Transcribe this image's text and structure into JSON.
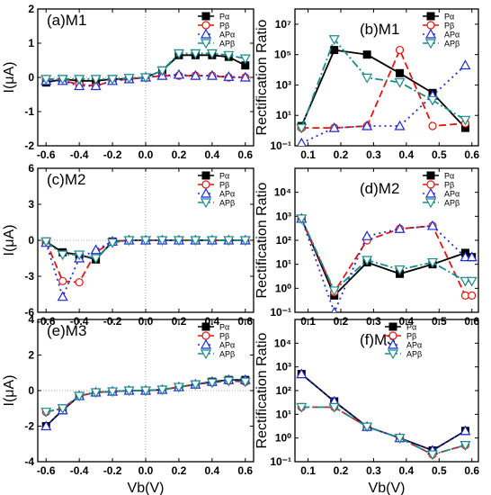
{
  "styles": {
    "Pα": {
      "color": "#000000",
      "dash": "",
      "marker": "square-filled"
    },
    "Pβ": {
      "color": "#e8140c",
      "dash": "8,4",
      "marker": "circle-open"
    },
    "APα": {
      "color": "#1f2ad8",
      "dash": "2,4",
      "marker": "triangle-open"
    },
    "APβ": {
      "color": "#1a8a8a",
      "dash": "9,3,2,3",
      "marker": "triangle-down-open"
    }
  },
  "chart_data": [
    {
      "type": "line",
      "title": "(a)M1",
      "ylabel": "I(μA)",
      "xlabel": "",
      "xlim": [
        -0.65,
        0.65
      ],
      "ylim": [
        -2,
        2
      ],
      "yscale": "linear",
      "xticks": [
        "-0.6",
        "-0.4",
        "-0.2",
        "0.0",
        "0.2",
        "0.4",
        "0.6"
      ],
      "yticks": [
        "-2",
        "-1",
        "0",
        "1",
        "2"
      ],
      "legend": "top-right",
      "x": [
        -0.6,
        -0.5,
        -0.4,
        -0.3,
        -0.2,
        -0.1,
        0.0,
        0.1,
        0.2,
        0.3,
        0.4,
        0.5,
        0.6
      ],
      "series": [
        {
          "name": "Pα",
          "values": [
            -0.15,
            -0.05,
            -0.1,
            -0.1,
            -0.05,
            -0.05,
            0,
            0.2,
            0.65,
            0.65,
            0.65,
            0.6,
            0.35
          ]
        },
        {
          "name": "Pβ",
          "values": [
            -0.05,
            -0.1,
            -0.2,
            -0.25,
            -0.1,
            -0.05,
            0,
            0.05,
            0.05,
            0.05,
            0.05,
            0.0,
            0.0
          ]
        },
        {
          "name": "APα",
          "values": [
            -0.1,
            -0.1,
            -0.25,
            -0.25,
            -0.1,
            -0.05,
            0,
            0.05,
            0.08,
            0.05,
            0.05,
            0.02,
            0.0
          ]
        },
        {
          "name": "APβ",
          "values": [
            -0.05,
            -0.05,
            -0.05,
            -0.05,
            -0.05,
            -0.02,
            0,
            0.2,
            0.7,
            0.7,
            0.7,
            0.65,
            0.55
          ]
        }
      ]
    },
    {
      "type": "line",
      "title": "(b)M1",
      "ylabel": "Rectification Ratio",
      "xlabel": "",
      "xlim": [
        0.06,
        0.62
      ],
      "yscale": "log",
      "ylim_exp": [
        -1,
        8
      ],
      "xticks": [
        "0.1",
        "0.2",
        "0.3",
        "0.4",
        "0.5",
        "0.6"
      ],
      "yticks": [
        "10⁻¹",
        "10¹",
        "10³",
        "10⁵",
        "10⁷"
      ],
      "ytick_exps": [
        -1,
        1,
        3,
        5,
        7
      ],
      "legend": "top-right",
      "x": [
        0.08,
        0.18,
        0.28,
        0.38,
        0.48,
        0.58
      ],
      "series": [
        {
          "name": "Pα",
          "values": [
            2,
            200000,
            100000,
            6000,
            300,
            1.5
          ]
        },
        {
          "name": "Pβ",
          "values": [
            1.5,
            1.5,
            2,
            200000,
            2,
            3
          ]
        },
        {
          "name": "APα",
          "values": [
            0.15,
            1.5,
            2,
            2,
            200,
            20000
          ]
        },
        {
          "name": "APβ",
          "values": [
            1.5,
            1000000,
            3000,
            1500,
            100,
            5
          ]
        }
      ]
    },
    {
      "type": "line",
      "title": "(c)M2",
      "ylabel": "I(μA)",
      "xlabel": "",
      "xlim": [
        -0.65,
        0.65
      ],
      "ylim": [
        -6,
        6
      ],
      "yscale": "linear",
      "xticks": [
        "-0.6",
        "-0.4",
        "-0.2",
        "0.0",
        "0.2",
        "0.4",
        "0.6"
      ],
      "yticks": [
        "-6",
        "-3",
        "0",
        "3",
        "6"
      ],
      "legend": "top-right",
      "x": [
        -0.6,
        -0.5,
        -0.4,
        -0.3,
        -0.2,
        -0.1,
        0.0,
        0.1,
        0.2,
        0.3,
        0.4,
        0.5,
        0.6
      ],
      "series": [
        {
          "name": "Pα",
          "values": [
            -0.1,
            -1.0,
            -1.2,
            -1.6,
            -0.1,
            0,
            0,
            0,
            0,
            0,
            0,
            0,
            0
          ]
        },
        {
          "name": "Pβ",
          "values": [
            -0.1,
            -3.4,
            -3.5,
            -1.0,
            -0.1,
            0,
            0,
            0,
            0,
            0,
            0,
            0,
            0
          ]
        },
        {
          "name": "APα",
          "values": [
            -0.2,
            -4.7,
            -1.5,
            -0.8,
            -0.1,
            0,
            0,
            0,
            0,
            0,
            0,
            0,
            0
          ]
        },
        {
          "name": "APβ",
          "values": [
            -0.1,
            -1.2,
            -1.2,
            -1.5,
            -0.2,
            0,
            0,
            0,
            0,
            0,
            0,
            0,
            0
          ]
        }
      ]
    },
    {
      "type": "line",
      "title": "(d)M2",
      "ylabel": "Rectification Ratio",
      "xlabel": "",
      "xlim": [
        0.06,
        0.62
      ],
      "yscale": "log",
      "ylim_exp": [
        -1,
        5
      ],
      "xticks": [
        "0.1",
        "0.2",
        "0.3",
        "0.4",
        "0.5",
        "0.6"
      ],
      "yticks": [
        "10⁻¹",
        "10⁰",
        "10¹",
        "10²",
        "10³",
        "10⁴"
      ],
      "ytick_exps": [
        -1,
        0,
        1,
        2,
        3,
        4
      ],
      "legend": "top-right",
      "x": [
        0.08,
        0.18,
        0.28,
        0.38,
        0.48,
        0.58,
        0.6
      ],
      "series": [
        {
          "name": "Pα",
          "values": [
            800,
            0.5,
            12,
            4,
            10,
            30,
            20
          ]
        },
        {
          "name": "Pβ",
          "values": [
            800,
            0.7,
            100,
            300,
            400,
            0.5,
            0.5
          ]
        },
        {
          "name": "APα",
          "values": [
            800,
            0.1,
            150,
            300,
            400,
            20,
            20
          ]
        },
        {
          "name": "APβ",
          "values": [
            800,
            0.8,
            15,
            6,
            12,
            2,
            2
          ]
        }
      ]
    },
    {
      "type": "line",
      "title": "(e)M3",
      "ylabel": "I(μA)",
      "xlabel": "Vb(V)",
      "xlim": [
        -0.65,
        0.65
      ],
      "ylim": [
        -4,
        4
      ],
      "yscale": "linear",
      "xticks": [
        "-0.6",
        "-0.4",
        "-0.2",
        "0.0",
        "0.2",
        "0.4",
        "0.6"
      ],
      "yticks": [
        "-4",
        "-2",
        "0",
        "2",
        "4"
      ],
      "legend": "top-right",
      "x": [
        -0.6,
        -0.5,
        -0.4,
        -0.3,
        -0.2,
        -0.1,
        0.0,
        0.1,
        0.2,
        0.3,
        0.4,
        0.5,
        0.6
      ],
      "series": [
        {
          "name": "Pα",
          "values": [
            -2.0,
            -1.1,
            -0.3,
            -0.1,
            -0.05,
            0,
            0,
            0.05,
            0.2,
            0.35,
            0.5,
            0.6,
            0.6
          ]
        },
        {
          "name": "Pβ",
          "values": [
            -1.2,
            -1.0,
            -0.3,
            -0.1,
            -0.05,
            0,
            0,
            0.05,
            0.2,
            0.35,
            0.45,
            0.55,
            0.5
          ]
        },
        {
          "name": "APα",
          "values": [
            -2.0,
            -1.1,
            -0.3,
            -0.1,
            -0.05,
            0,
            0,
            0.05,
            0.2,
            0.35,
            0.5,
            0.6,
            0.6
          ]
        },
        {
          "name": "APβ",
          "values": [
            -1.2,
            -1.0,
            -0.3,
            -0.1,
            -0.05,
            0,
            0,
            0.05,
            0.2,
            0.35,
            0.45,
            0.55,
            0.5
          ]
        }
      ]
    },
    {
      "type": "line",
      "title": "(f)M3",
      "ylabel": "Rectification Ratio",
      "xlabel": "Vb(V)",
      "xlim": [
        0.06,
        0.62
      ],
      "yscale": "log",
      "ylim_exp": [
        -1,
        5
      ],
      "xticks": [
        "0.1",
        "0.2",
        "0.3",
        "0.4",
        "0.5",
        "0.6"
      ],
      "yticks": [
        "10⁻¹",
        "10⁰",
        "10¹",
        "10²",
        "10³",
        "10⁴"
      ],
      "ytick_exps": [
        -1,
        0,
        1,
        2,
        3,
        4
      ],
      "legend": "top-left",
      "x": [
        0.08,
        0.18,
        0.28,
        0.38,
        0.48,
        0.58
      ],
      "series": [
        {
          "name": "Pα",
          "values": [
            500,
            35,
            3,
            1,
            0.3,
            2
          ]
        },
        {
          "name": "Pβ",
          "values": [
            20,
            20,
            3,
            1,
            0.2,
            0.5
          ]
        },
        {
          "name": "APα",
          "values": [
            500,
            35,
            3,
            1,
            0.3,
            2
          ]
        },
        {
          "name": "APβ",
          "values": [
            20,
            20,
            3,
            1,
            0.2,
            0.5
          ]
        }
      ]
    }
  ]
}
